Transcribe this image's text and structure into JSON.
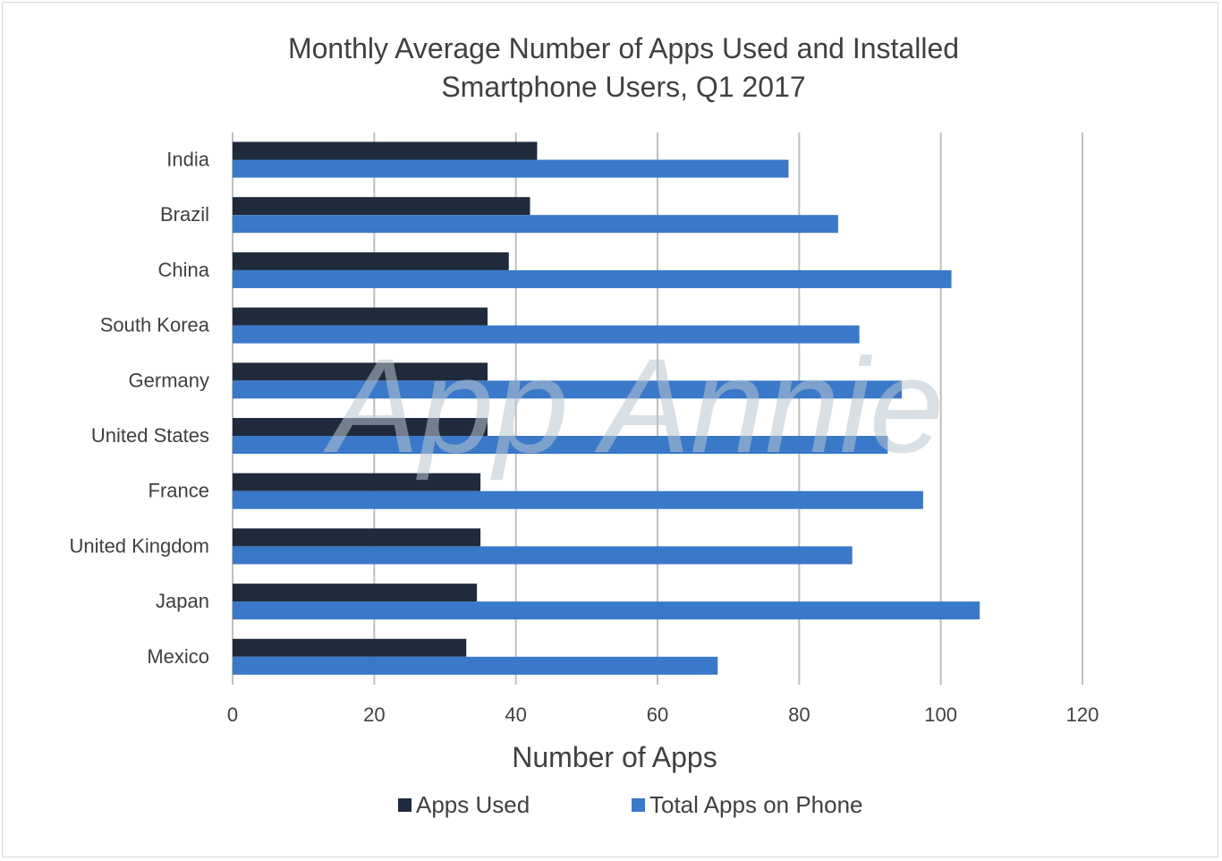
{
  "title_line1": "Monthly Average Number of Apps Used and Installed",
  "title_line2": "Smartphone Users, Q1 2017",
  "watermark": "App Annie",
  "colors": {
    "apps_used": "#1f2b3d",
    "total_apps": "#3a78c9",
    "grid": "#bfbfbf",
    "text": "#404040"
  },
  "chart_data": {
    "type": "bar",
    "orientation": "horizontal",
    "categories": [
      "India",
      "Brazil",
      "China",
      "South Korea",
      "Germany",
      "United States",
      "France",
      "United Kingdom",
      "Japan",
      "Mexico"
    ],
    "series": [
      {
        "name": "Apps Used",
        "values": [
          43,
          42,
          39,
          36,
          36,
          36,
          35,
          35,
          34.5,
          33
        ]
      },
      {
        "name": "Total Apps on Phone",
        "values": [
          78.5,
          85.5,
          101.5,
          88.5,
          94.5,
          92.5,
          97.5,
          87.5,
          105.5,
          68.5
        ]
      }
    ],
    "xlabel": "Number of Apps",
    "ylabel": "",
    "xlim": [
      0,
      120
    ],
    "xticks": [
      "0",
      "20",
      "40",
      "60",
      "80",
      "100",
      "120"
    ],
    "grid": true,
    "legend_position": "bottom"
  }
}
